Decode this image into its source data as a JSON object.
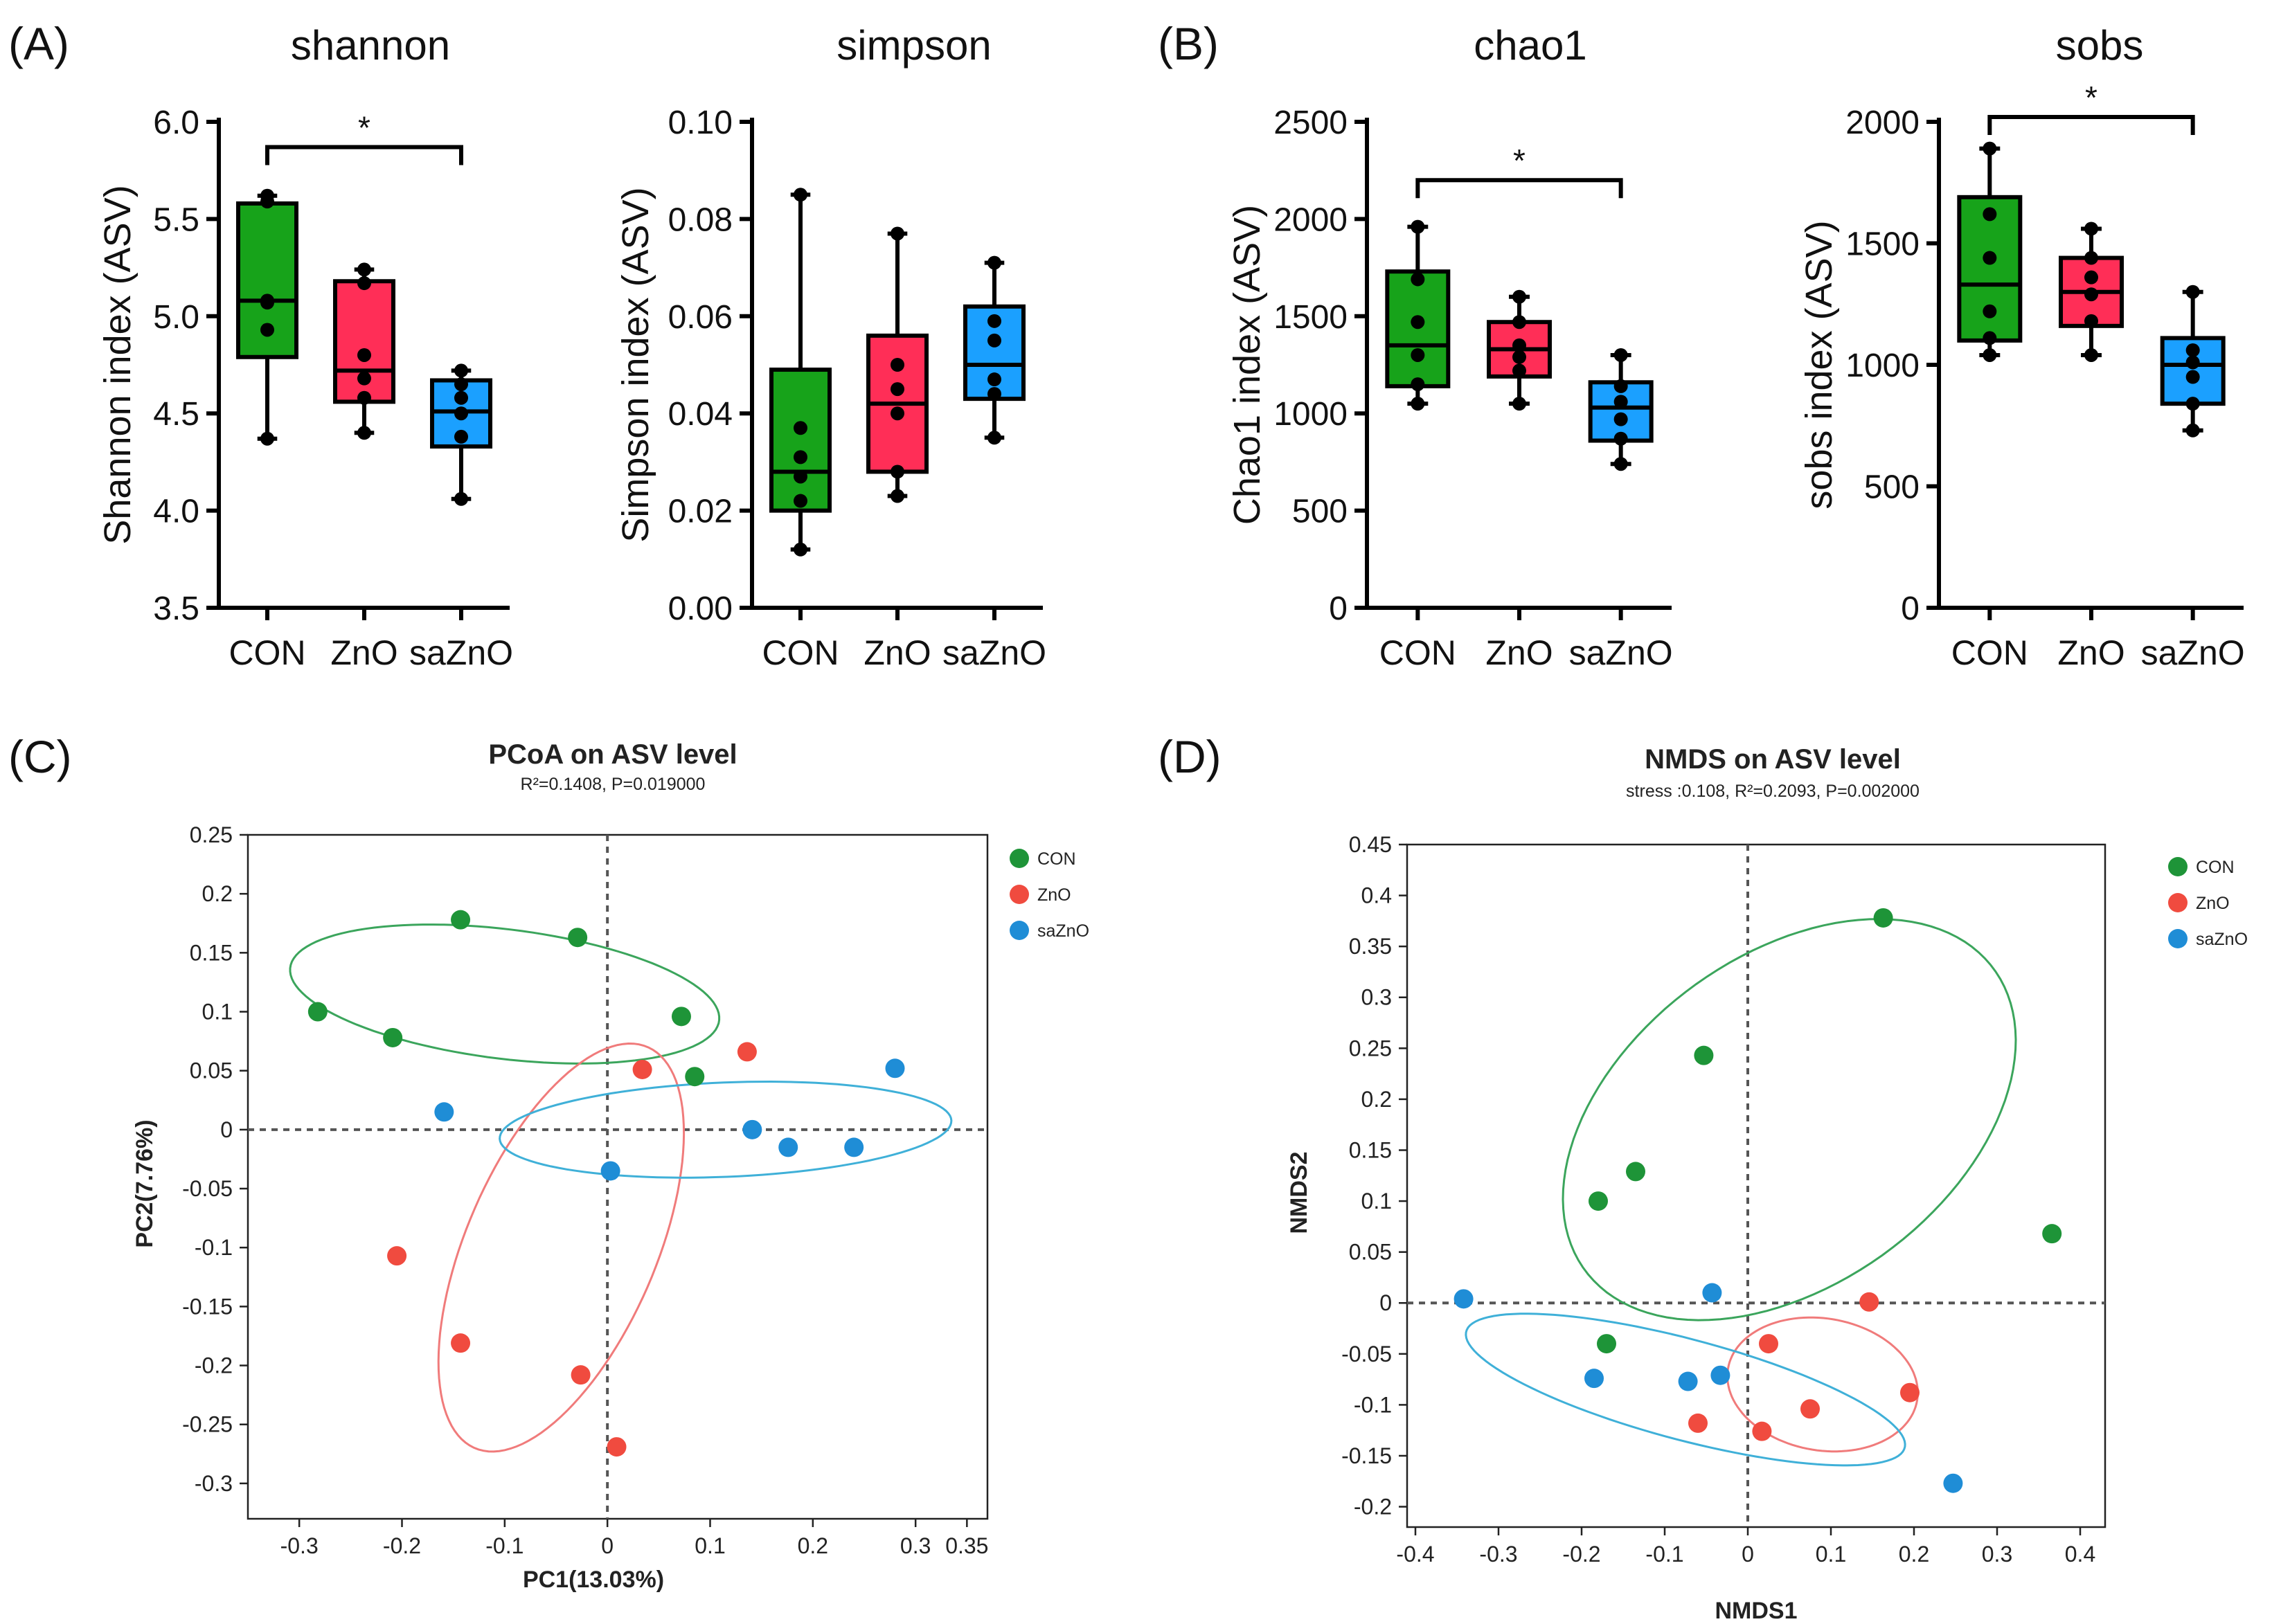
{
  "colors": {
    "CON": "#17a31a",
    "ZnO": "#ff2e57",
    "saZnO": "#1ba0ff",
    "CON_pt": "#1e9438",
    "ZnO_pt": "#f04b3f",
    "saZnO_pt": "#1f8dd6",
    "ell_CON": "#3ba55c",
    "ell_ZnO": "#f07b7b",
    "ell_saZnO": "#3fb0d8"
  },
  "panel_labels": {
    "A": "(A)",
    "B": "(B)",
    "C": "(C)",
    "D": "(D)"
  },
  "chart_data": [
    {
      "type": "box",
      "id": "shannon",
      "title": "shannon",
      "ylabel": "Shannon index (ASV)",
      "categories": [
        "CON",
        "ZnO",
        "saZnO"
      ],
      "ylim": [
        3.5,
        6.0
      ],
      "yticks": [
        3.5,
        4.0,
        4.5,
        5.0,
        5.5,
        6.0
      ],
      "tick_decimals": 1,
      "boxes": [
        {
          "group": "CON",
          "min": 4.37,
          "q1": 4.79,
          "median": 5.08,
          "q3": 5.58,
          "max": 5.62,
          "points": [
            4.37,
            4.93,
            5.07,
            5.08,
            5.59,
            5.62
          ]
        },
        {
          "group": "ZnO",
          "min": 4.4,
          "q1": 4.56,
          "median": 4.72,
          "q3": 5.18,
          "max": 5.24,
          "points": [
            4.4,
            4.58,
            4.68,
            4.8,
            5.17,
            5.24
          ]
        },
        {
          "group": "saZnO",
          "min": 4.06,
          "q1": 4.33,
          "median": 4.51,
          "q3": 4.67,
          "max": 4.72,
          "points": [
            4.06,
            4.38,
            4.5,
            4.58,
            4.65,
            4.72
          ]
        }
      ],
      "sig": {
        "from": "CON",
        "to": "saZnO",
        "y": 5.87,
        "label": "*"
      }
    },
    {
      "type": "box",
      "id": "simpson",
      "title": "simpson",
      "ylabel": "Simpson index (ASV)",
      "categories": [
        "CON",
        "ZnO",
        "saZnO"
      ],
      "ylim": [
        0,
        0.1
      ],
      "yticks": [
        0.0,
        0.02,
        0.04,
        0.06,
        0.08,
        0.1
      ],
      "tick_decimals": 2,
      "boxes": [
        {
          "group": "CON",
          "min": 0.012,
          "q1": 0.02,
          "median": 0.028,
          "q3": 0.049,
          "max": 0.085,
          "points": [
            0.012,
            0.022,
            0.027,
            0.031,
            0.037,
            0.085
          ]
        },
        {
          "group": "ZnO",
          "min": 0.023,
          "q1": 0.028,
          "median": 0.042,
          "q3": 0.056,
          "max": 0.077,
          "points": [
            0.023,
            0.028,
            0.04,
            0.045,
            0.05,
            0.077
          ]
        },
        {
          "group": "saZnO",
          "min": 0.035,
          "q1": 0.043,
          "median": 0.05,
          "q3": 0.062,
          "max": 0.071,
          "points": [
            0.035,
            0.044,
            0.047,
            0.055,
            0.059,
            0.071
          ]
        }
      ]
    },
    {
      "type": "box",
      "id": "chao1",
      "title": "chao1",
      "ylabel": "Chao1 index (ASV)",
      "categories": [
        "CON",
        "ZnO",
        "saZnO"
      ],
      "ylim": [
        0,
        2500
      ],
      "yticks": [
        0,
        500,
        1000,
        1500,
        2000,
        2500
      ],
      "tick_decimals": 0,
      "boxes": [
        {
          "group": "CON",
          "min": 1050,
          "q1": 1140,
          "median": 1350,
          "q3": 1730,
          "max": 1960,
          "points": [
            1050,
            1150,
            1300,
            1470,
            1690,
            1960
          ]
        },
        {
          "group": "ZnO",
          "min": 1050,
          "q1": 1190,
          "median": 1330,
          "q3": 1470,
          "max": 1600,
          "points": [
            1050,
            1220,
            1290,
            1350,
            1470,
            1600
          ]
        },
        {
          "group": "saZnO",
          "min": 740,
          "q1": 860,
          "median": 1030,
          "q3": 1160,
          "max": 1300,
          "points": [
            740,
            870,
            970,
            1060,
            1140,
            1300
          ]
        }
      ],
      "sig": {
        "from": "CON",
        "to": "saZnO",
        "y": 2200,
        "label": "*"
      }
    },
    {
      "type": "box",
      "id": "sobs",
      "title": "sobs",
      "ylabel": "sobs index (ASV)",
      "categories": [
        "CON",
        "ZnO",
        "saZnO"
      ],
      "ylim": [
        0,
        2000
      ],
      "yticks": [
        0,
        500,
        1000,
        1500,
        2000
      ],
      "tick_decimals": 0,
      "boxes": [
        {
          "group": "CON",
          "min": 1040,
          "q1": 1100,
          "median": 1330,
          "q3": 1690,
          "max": 1890,
          "points": [
            1040,
            1110,
            1220,
            1440,
            1620,
            1890
          ]
        },
        {
          "group": "ZnO",
          "min": 1040,
          "q1": 1160,
          "median": 1300,
          "q3": 1440,
          "max": 1560,
          "points": [
            1040,
            1180,
            1290,
            1360,
            1440,
            1560
          ]
        },
        {
          "group": "saZnO",
          "min": 730,
          "q1": 840,
          "median": 1000,
          "q3": 1110,
          "max": 1300,
          "points": [
            730,
            840,
            950,
            1010,
            1060,
            1300
          ]
        }
      ],
      "sig": {
        "from": "CON",
        "to": "saZnO",
        "y": 2020,
        "label": "*"
      }
    },
    {
      "type": "scatter",
      "id": "pcoa",
      "title": "PCoA on ASV level",
      "subtitle": "R²=0.1408, P=0.019000",
      "xlabel": "PC1(13.03%)",
      "ylabel": "PC2(7.76%)",
      "xlim": [
        -0.35,
        0.37
      ],
      "ylim": [
        -0.33,
        0.25
      ],
      "xticks": [
        "-0.3",
        "-0.2",
        "-0.1",
        "0",
        "0.1",
        "0.2",
        "0.3",
        "0.35"
      ],
      "xtick_values": [
        -0.3,
        -0.2,
        -0.1,
        0,
        0.1,
        0.2,
        0.3,
        0.35
      ],
      "yticks": [
        "0.25",
        "0.2",
        "0.15",
        "0.1",
        "0.05",
        "0",
        "-0.05",
        "-0.1",
        "-0.15",
        "-0.2",
        "-0.25",
        "-0.3"
      ],
      "ytick_values": [
        0.25,
        0.2,
        0.15,
        0.1,
        0.05,
        0,
        -0.05,
        -0.1,
        -0.15,
        -0.2,
        -0.25,
        -0.3
      ],
      "legend_position": "top-right",
      "series": [
        {
          "name": "CON",
          "points": [
            [
              -0.143,
              0.178
            ],
            [
              -0.029,
              0.163
            ],
            [
              -0.282,
              0.1
            ],
            [
              -0.209,
              0.078
            ],
            [
              0.072,
              0.096
            ],
            [
              0.085,
              0.045
            ]
          ]
        },
        {
          "name": "ZnO",
          "points": [
            [
              0.034,
              0.051
            ],
            [
              0.136,
              0.066
            ],
            [
              -0.205,
              -0.107
            ],
            [
              -0.143,
              -0.181
            ],
            [
              -0.026,
              -0.208
            ],
            [
              0.009,
              -0.269
            ]
          ]
        },
        {
          "name": "saZnO",
          "points": [
            [
              -0.159,
              0.015
            ],
            [
              0.003,
              -0.035
            ],
            [
              0.141,
              0.0
            ],
            [
              0.176,
              -0.015
            ],
            [
              0.24,
              -0.015
            ],
            [
              0.28,
              0.052
            ]
          ]
        }
      ],
      "ellipses": [
        {
          "group": "CON",
          "cx": -0.1,
          "cy": 0.115,
          "rx": 0.21,
          "ry": 0.055,
          "angle_deg": -6
        },
        {
          "group": "ZnO",
          "cx": -0.045,
          "cy": -0.1,
          "rx": 0.19,
          "ry": 0.09,
          "angle_deg": 62
        },
        {
          "group": "saZnO",
          "cx": 0.115,
          "cy": 0.0,
          "rx": 0.22,
          "ry": 0.04,
          "angle_deg": 2
        }
      ]
    },
    {
      "type": "scatter",
      "id": "nmds",
      "title": "NMDS on ASV level",
      "subtitle": "stress :0.108, R²=0.2093, P=0.002000",
      "xlabel": "NMDS1",
      "ylabel": "NMDS2",
      "xlim": [
        -0.41,
        0.43
      ],
      "ylim": [
        -0.22,
        0.45
      ],
      "xticks": [
        "-0.4",
        "-0.3",
        "-0.2",
        "-0.1",
        "0",
        "0.1",
        "0.2",
        "0.3",
        "0.4"
      ],
      "xtick_values": [
        -0.4,
        -0.3,
        -0.2,
        -0.1,
        0,
        0.1,
        0.2,
        0.3,
        0.4
      ],
      "yticks": [
        "0.45",
        "0.4",
        "0.35",
        "0.3",
        "0.25",
        "0.2",
        "0.15",
        "0.1",
        "0.05",
        "0",
        "-0.05",
        "-0.1",
        "-0.15",
        "-0.2"
      ],
      "ytick_values": [
        0.45,
        0.4,
        0.35,
        0.3,
        0.25,
        0.2,
        0.15,
        0.1,
        0.05,
        0,
        -0.05,
        -0.1,
        -0.15,
        -0.2
      ],
      "legend_position": "top-right",
      "series": [
        {
          "name": "CON",
          "points": [
            [
              0.163,
              0.378
            ],
            [
              -0.053,
              0.243
            ],
            [
              -0.135,
              0.129
            ],
            [
              -0.18,
              0.1
            ],
            [
              0.366,
              0.068
            ],
            [
              -0.17,
              -0.04
            ]
          ]
        },
        {
          "name": "ZnO",
          "points": [
            [
              0.146,
              0.001
            ],
            [
              0.025,
              -0.04
            ],
            [
              0.195,
              -0.088
            ],
            [
              0.075,
              -0.104
            ],
            [
              -0.06,
              -0.118
            ],
            [
              0.017,
              -0.126
            ]
          ]
        },
        {
          "name": "saZnO",
          "points": [
            [
              -0.342,
              0.004
            ],
            [
              -0.043,
              0.01
            ],
            [
              -0.185,
              -0.074
            ],
            [
              -0.072,
              -0.077
            ],
            [
              -0.033,
              -0.071
            ],
            [
              0.247,
              -0.177
            ]
          ]
        }
      ],
      "ellipses": [
        {
          "group": "CON",
          "cx": 0.05,
          "cy": 0.18,
          "rx": 0.29,
          "ry": 0.17,
          "angle_deg": 25
        },
        {
          "group": "ZnO",
          "cx": 0.09,
          "cy": -0.08,
          "rx": 0.115,
          "ry": 0.065,
          "angle_deg": -6
        },
        {
          "group": "saZnO",
          "cx": -0.075,
          "cy": -0.085,
          "rx": 0.27,
          "ry": 0.05,
          "angle_deg": -12
        }
      ]
    }
  ]
}
